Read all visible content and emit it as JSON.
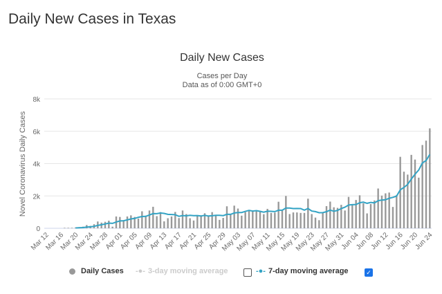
{
  "page_title": "Daily New Cases in Texas",
  "chart_data": {
    "type": "bar",
    "title": "Daily New Cases",
    "subtitle": "Cases per Day",
    "subtitle2": "Data as of 0:00 GMT+0",
    "ylabel": "Novel Coronavirus Daily Cases",
    "ylim": [
      0,
      8000
    ],
    "yticks": [
      "0",
      "2k",
      "4k",
      "6k",
      "8k"
    ],
    "grid": true,
    "legend_position": "bottom",
    "x_start": "Mar 12",
    "x_end": "Jun 24",
    "xticks": [
      "Mar 12",
      "Mar 16",
      "Mar 20",
      "Mar 24",
      "Mar 28",
      "Apr 01",
      "Apr 05",
      "Apr 09",
      "Apr 13",
      "Apr 17",
      "Apr 21",
      "Apr 25",
      "Apr 29",
      "May 03",
      "May 07",
      "May 11",
      "May 15",
      "May 19",
      "May 23",
      "May 27",
      "May 31",
      "Jun 04",
      "Jun 08",
      "Jun 12",
      "Jun 16",
      "Jun 20",
      "Jun 24"
    ],
    "series": [
      {
        "name": "Daily Cases",
        "color": "#999999",
        "values": [
          0,
          0,
          0,
          0,
          0,
          30,
          30,
          30,
          50,
          70,
          100,
          200,
          150,
          250,
          420,
          350,
          400,
          470,
          100,
          730,
          700,
          500,
          730,
          800,
          700,
          600,
          1050,
          780,
          1100,
          1330,
          750,
          1000,
          430,
          620,
          730,
          1010,
          630,
          1100,
          880,
          620,
          480,
          800,
          800,
          930,
          790,
          1000,
          800,
          520,
          640,
          1360,
          900,
          1400,
          1220,
          780,
          1000,
          1100,
          1050,
          1100,
          1080,
          870,
          1200,
          950,
          970,
          1640,
          1100,
          2000,
          880,
          980,
          980,
          950,
          950,
          1830,
          880,
          660,
          500,
          1000,
          1370,
          1650,
          1300,
          1260,
          1450,
          1100,
          1940,
          1500,
          1750,
          2040,
          1550,
          920,
          1500,
          1720,
          2460,
          2020,
          2160,
          2210,
          1320,
          2050,
          4420,
          3500,
          3320,
          4540,
          4250,
          3130,
          5150,
          5420,
          6180
        ]
      },
      {
        "name": "3-day moving average",
        "color": "#cccccc",
        "enabled": false
      },
      {
        "name": "7-day moving average",
        "color": "#33a3c4",
        "enabled": true
      }
    ]
  }
}
